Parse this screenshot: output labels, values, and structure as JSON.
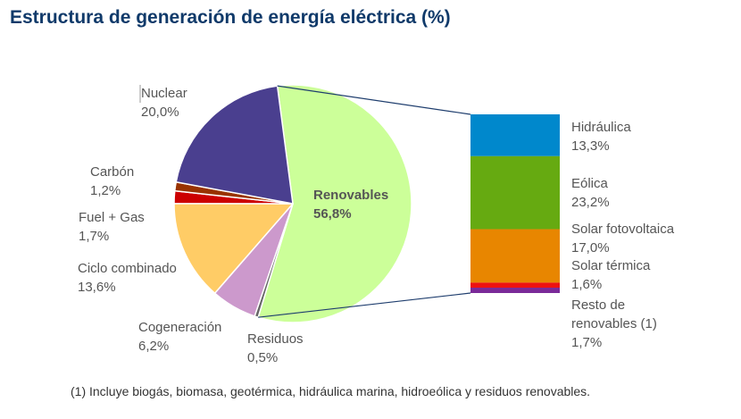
{
  "chart_data": {
    "type": "pie",
    "title": "Estructura de generación de energía eléctrica (%)",
    "footnote": "(1) Incluye biogás, biomasa, geotérmica, hidráulica marina, hidroeólica y residuos renovables.",
    "slices": [
      {
        "name": "Renovables",
        "value": 56.8,
        "label": "56,8%",
        "color": "#ccff99"
      },
      {
        "name": "Residuos",
        "value": 0.5,
        "label": "0,5%",
        "color": "#666666"
      },
      {
        "name": "Cogeneración",
        "value": 6.2,
        "label": "6,2%",
        "color": "#cc99cc"
      },
      {
        "name": "Ciclo combinado",
        "value": 13.6,
        "label": "13,6%",
        "color": "#ffcc66"
      },
      {
        "name": "Fuel + Gas",
        "value": 1.7,
        "label": "1,7%",
        "color": "#cc0000"
      },
      {
        "name": "Carbón",
        "value": 1.2,
        "label": "1,2%",
        "color": "#993300"
      },
      {
        "name": "Nuclear",
        "value": 20.0,
        "label": "20,0%",
        "color": "#4a3f8f"
      }
    ],
    "breakdown": {
      "of": "Renovables",
      "segments": [
        {
          "name": "Hidráulica",
          "value": 13.3,
          "label": "13,3%",
          "color": "#0088cc"
        },
        {
          "name": "Eólica",
          "value": 23.2,
          "label": "23,2%",
          "color": "#66aa11"
        },
        {
          "name": "Solar fotovoltaica",
          "value": 17.0,
          "label": "17,0%",
          "color": "#e88600"
        },
        {
          "name": "Solar térmica",
          "value": 1.6,
          "label": "1,6%",
          "color": "#ee1111"
        },
        {
          "name": "Resto de renovables (1)",
          "value": 1.7,
          "label": "1,7%",
          "color": "#7a2a99"
        }
      ]
    }
  }
}
